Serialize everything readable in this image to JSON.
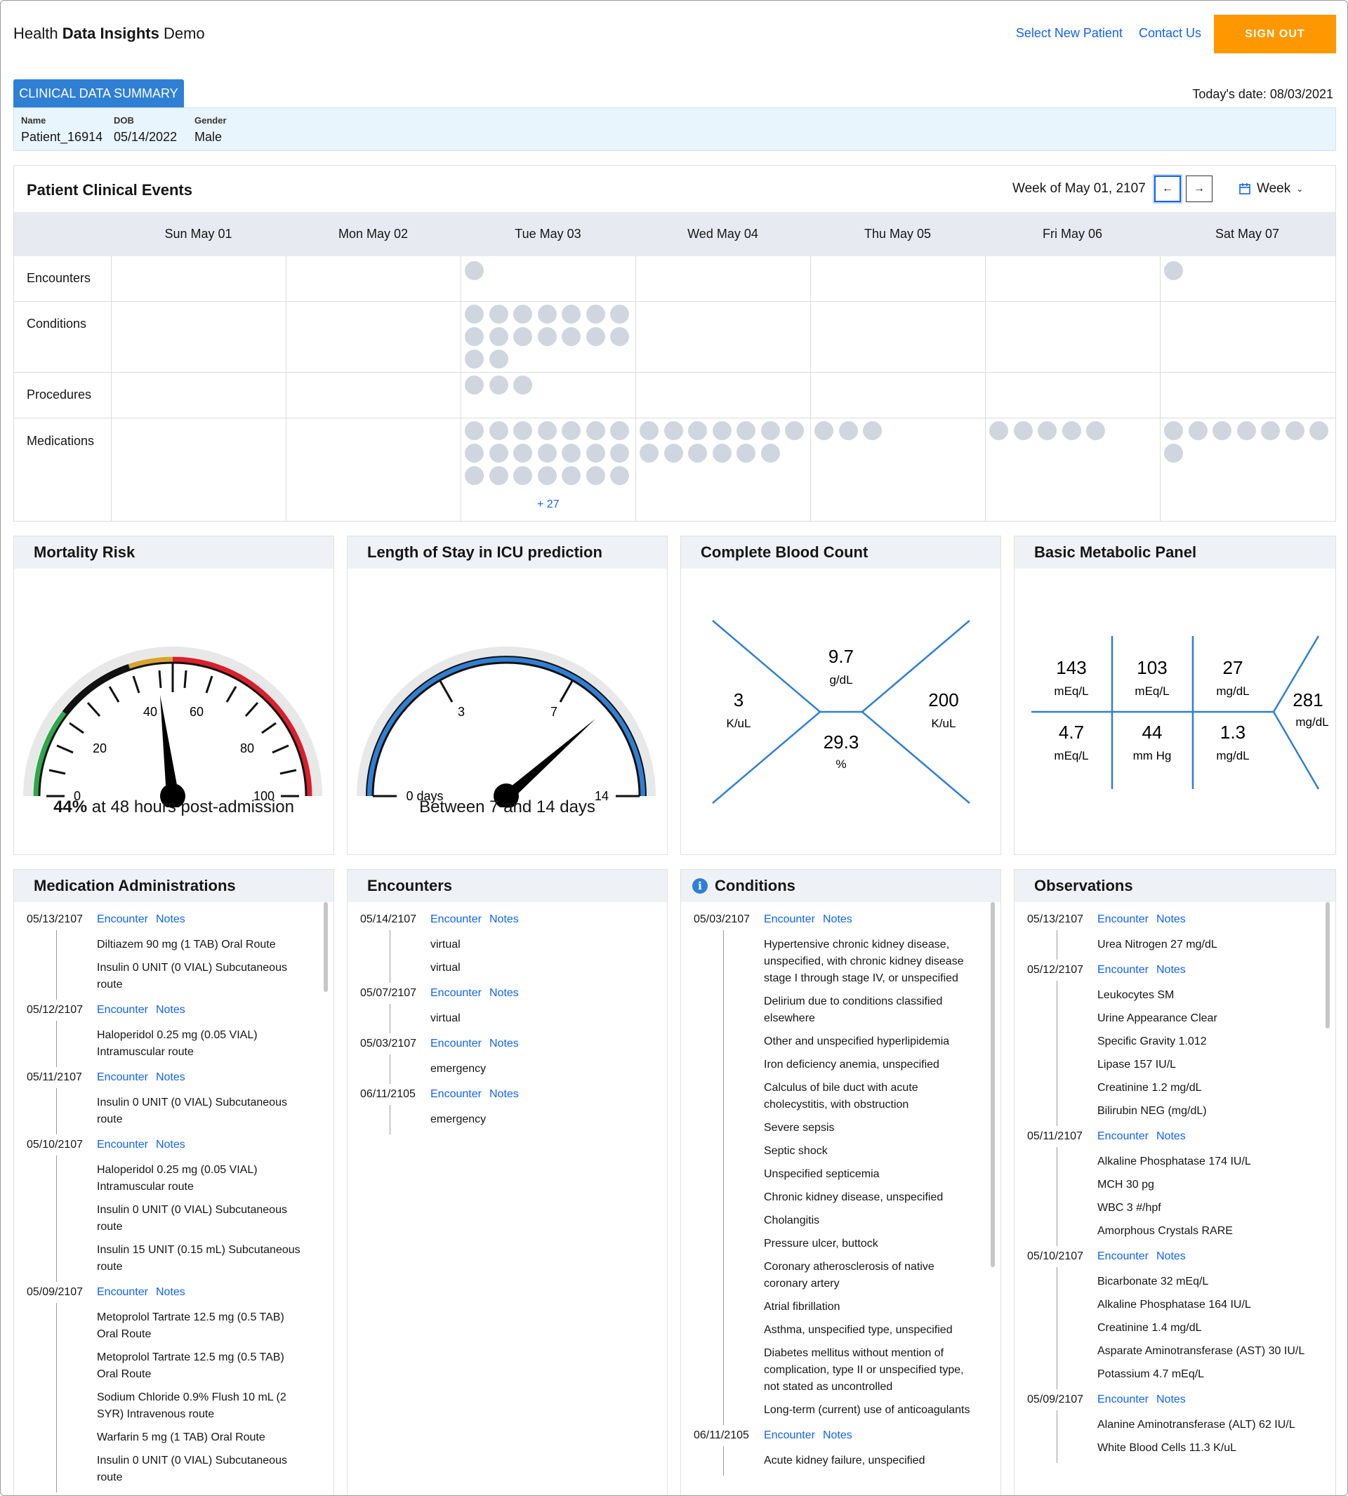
{
  "header": {
    "brand_pre": "Health ",
    "brand_bold": "Data Insights",
    "brand_post": " Demo",
    "select_patient": "Select New Patient",
    "contact": "Contact Us",
    "signout": "SIGN OUT"
  },
  "summary": {
    "tab": "CLINICAL DATA SUMMARY",
    "today": "Today's date: 08/03/2021",
    "name_label": "Name",
    "name": "Patient_16914",
    "dob_label": "DOB",
    "dob": "05/14/2022",
    "gender_label": "Gender",
    "gender": "Male"
  },
  "events": {
    "title": "Patient Clinical Events",
    "week_label": "Week of May 01, 2107",
    "view": "Week",
    "days": [
      "Sun May 01",
      "Mon May 02",
      "Tue May 03",
      "Wed May 04",
      "Thu May 05",
      "Fri May 06",
      "Sat May 07"
    ],
    "rows": [
      "Encounters",
      "Conditions",
      "Procedures",
      "Medications"
    ],
    "more": "+ 27"
  },
  "mortality": {
    "title": "Mortality Risk",
    "value": 44,
    "ticks": [
      "0",
      "20",
      "40",
      "60",
      "80",
      "100"
    ],
    "caption_bold": "44%",
    "caption": " at 48 hours post-admission"
  },
  "los": {
    "title": "Length of Stay in ICU prediction",
    "ticks": [
      "0 days",
      "3",
      "7",
      "14"
    ],
    "caption": "Between 7 and 14 days"
  },
  "cbc": {
    "title": "Complete Blood Count",
    "wbc": "3",
    "wbc_unit": "K/uL",
    "hgb": "9.7",
    "hgb_unit": "g/dL",
    "hct": "29.3",
    "hct_unit": "%",
    "plt": "200",
    "plt_unit": "K/uL"
  },
  "bmp": {
    "title": "Basic Metabolic Panel",
    "na": "143",
    "na_unit": "mEq/L",
    "cl": "103",
    "cl_unit": "mEq/L",
    "bun": "27",
    "bun_unit": "mg/dL",
    "k": "4.7",
    "k_unit": "mEq/L",
    "co2": "44",
    "co2_unit": "mm Hg",
    "cr": "1.3",
    "cr_unit": "mg/dL",
    "glu": "281",
    "glu_unit": "mg/dL"
  },
  "link_encounter": "Encounter",
  "link_notes": "Notes",
  "med_admin": {
    "title": "Medication Administrations",
    "groups": [
      {
        "date": "05/13/2107",
        "items": [
          "Diltiazem 90 mg (1 TAB) Oral Route",
          "Insulin 0 UNIT (0 VIAL) Subcutaneous route"
        ]
      },
      {
        "date": "05/12/2107",
        "items": [
          "Haloperidol 0.25 mg (0.05 VIAL) Intramuscular route"
        ]
      },
      {
        "date": "05/11/2107",
        "items": [
          "Insulin 0 UNIT (0 VIAL) Subcutaneous route"
        ]
      },
      {
        "date": "05/10/2107",
        "items": [
          "Haloperidol 0.25 mg (0.05 VIAL) Intramuscular route",
          "Insulin 0 UNIT (0 VIAL) Subcutaneous route",
          "Insulin 15 UNIT (0.15 mL) Subcutaneous route"
        ]
      },
      {
        "date": "05/09/2107",
        "items": [
          "Metoprolol Tartrate 12.5 mg (0.5 TAB) Oral Route",
          "Metoprolol Tartrate 12.5 mg (0.5 TAB) Oral Route",
          "Sodium Chloride 0.9% Flush 10 mL (2 SYR) Intravenous route",
          "Warfarin 5 mg (1 TAB) Oral Route",
          "Insulin 0 UNIT (0 VIAL) Subcutaneous route"
        ]
      }
    ]
  },
  "encounters": {
    "title": "Encounters",
    "groups": [
      {
        "date": "05/14/2107",
        "items": [
          "virtual",
          "virtual"
        ]
      },
      {
        "date": "05/07/2107",
        "items": [
          "virtual"
        ]
      },
      {
        "date": "05/03/2107",
        "items": [
          "emergency"
        ]
      },
      {
        "date": "06/11/2105",
        "items": [
          "emergency"
        ]
      }
    ]
  },
  "conditions": {
    "title": "Conditions",
    "groups": [
      {
        "date": "05/03/2107",
        "items": [
          "Hypertensive chronic kidney disease, unspecified, with chronic kidney disease stage I through stage IV, or unspecified",
          "Delirium due to conditions classified elsewhere",
          "Other and unspecified hyperlipidemia",
          "Iron deficiency anemia, unspecified",
          "Calculus of bile duct with acute cholecystitis, with obstruction",
          "Severe sepsis",
          "Septic shock",
          "Unspecified septicemia",
          "Chronic kidney disease, unspecified",
          "Cholangitis",
          "Pressure ulcer, buttock",
          "Coronary atherosclerosis of native coronary artery",
          "Atrial fibrillation",
          "Asthma, unspecified type, unspecified",
          "Diabetes mellitus without mention of complication, type II or unspecified type, not stated as uncontrolled",
          "Long-term (current) use of anticoagulants"
        ]
      },
      {
        "date": "06/11/2105",
        "items": [
          "Acute kidney failure, unspecified"
        ]
      }
    ]
  },
  "observations": {
    "title": "Observations",
    "groups": [
      {
        "date": "05/13/2107",
        "items": [
          "Urea Nitrogen 27 mg/dL"
        ]
      },
      {
        "date": "05/12/2107",
        "items": [
          "Leukocytes SM",
          "Urine Appearance Clear",
          "Specific Gravity 1.012",
          "Lipase 157 IU/L",
          "Creatinine 1.2 mg/dL",
          "Bilirubin NEG (mg/dL)"
        ]
      },
      {
        "date": "05/11/2107",
        "items": [
          "Alkaline Phosphatase 174 IU/L",
          "MCH 30 pg",
          "WBC 3 #/hpf",
          "Amorphous Crystals RARE"
        ]
      },
      {
        "date": "05/10/2107",
        "items": [
          "Bicarbonate 32 mEq/L",
          "Alkaline Phosphatase 164 IU/L",
          "Creatinine 1.4 mg/dL",
          "Asparate Aminotransferase (AST) 30 IU/L",
          "Potassium 4.7 mEq/L"
        ]
      },
      {
        "date": "05/09/2107",
        "items": [
          "Alanine Aminotransferase (ALT) 62 IU/L",
          "White Blood Cells 11.3 K/uL"
        ]
      }
    ]
  }
}
